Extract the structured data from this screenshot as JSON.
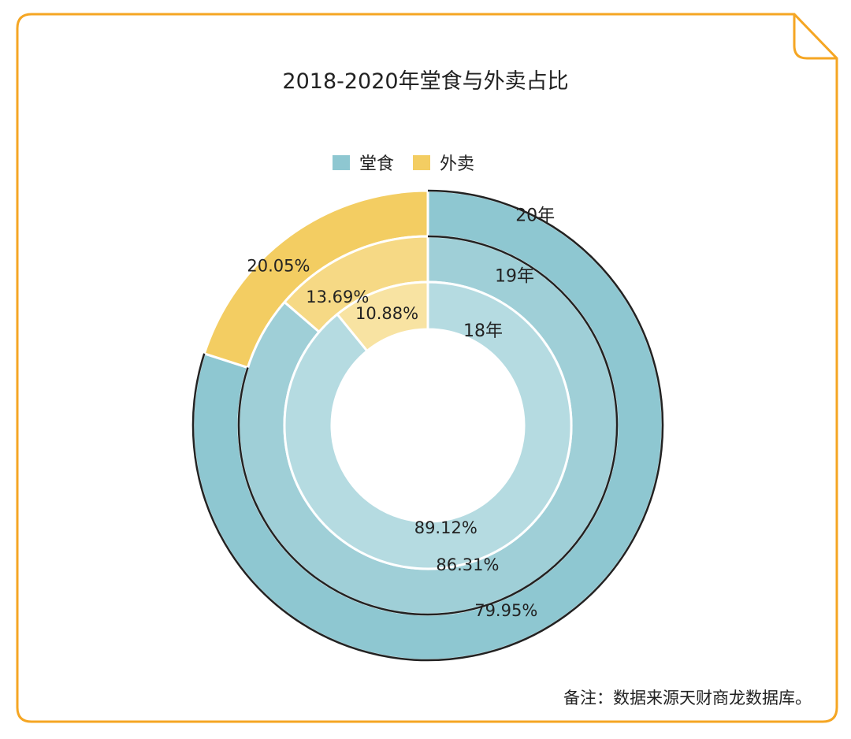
{
  "chart_data": {
    "type": "pie",
    "subtype": "nested-donut",
    "title": "2018-2020年堂食与外卖占比",
    "legend": [
      {
        "name": "堂食",
        "color": "#8ec7d1"
      },
      {
        "name": "外卖",
        "color": "#f3cd62"
      }
    ],
    "legend_position": "top-center",
    "categories": [
      "堂食",
      "外卖"
    ],
    "rings": [
      {
        "label": "18年",
        "values": [
          89.12,
          10.88
        ],
        "value_labels": [
          "89.12%",
          "10.88%"
        ],
        "colors": [
          "#b5dbe1",
          "#f8e3a2"
        ]
      },
      {
        "label": "19年",
        "values": [
          86.31,
          13.69
        ],
        "value_labels": [
          "86.31%",
          "13.69%"
        ],
        "colors": [
          "#9fcfd7",
          "#f6d985"
        ]
      },
      {
        "label": "20年",
        "values": [
          79.95,
          20.05
        ],
        "value_labels": [
          "79.95%",
          "20.05%"
        ],
        "colors": [
          "#8ec7d1",
          "#f3cd62"
        ]
      }
    ]
  },
  "footnote": "备注：数据来源天财商龙数据库。",
  "frame_color": "#f5a623"
}
